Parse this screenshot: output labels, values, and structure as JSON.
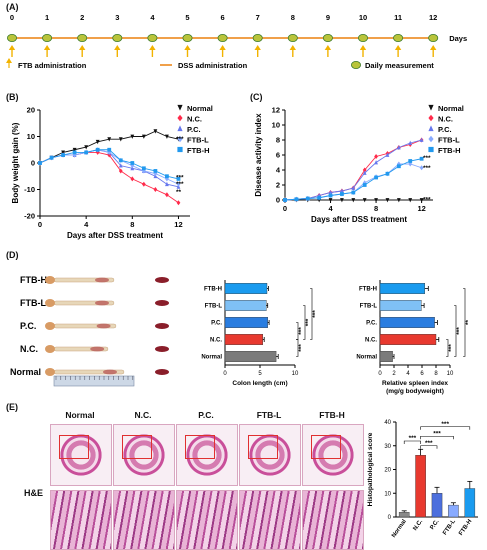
{
  "panels": {
    "A": "(A)",
    "B": "(B)",
    "C": "(C)",
    "D": "(D)",
    "E": "(E)"
  },
  "timeline": {
    "days": [
      "0",
      "1",
      "2",
      "3",
      "4",
      "5",
      "6",
      "7",
      "8",
      "9",
      "10",
      "11",
      "12"
    ],
    "days_label": "Days",
    "ftb_label": "FTB administration",
    "dss_label": "DSS administration",
    "measure_label": "Daily measurement",
    "colors": {
      "line": "#f0a04a",
      "dot": "#b9c43a",
      "dot_edge": "#3c7a2c",
      "arrow": "#f2b300"
    }
  },
  "groups": [
    {
      "name": "Normal",
      "color": "#111111",
      "marker": "triangle-down"
    },
    {
      "name": "N.C.",
      "color": "#ff2a4a",
      "marker": "diamond"
    },
    {
      "name": "P.C.",
      "color": "#6677ee",
      "marker": "triangle-up"
    },
    {
      "name": "FTB-L",
      "color": "#88aaff",
      "marker": "diamond"
    },
    {
      "name": "FTB-H",
      "color": "#2299ee",
      "marker": "square"
    }
  ],
  "chart_data": [
    {
      "id": "B",
      "type": "line",
      "xlabel": "Days after DSS treatment",
      "ylabel": "Body weight gain (%)",
      "xticks": [
        "0",
        "4",
        "8",
        "12"
      ],
      "yticks": [
        "-20",
        "-10",
        "0",
        "10",
        "20"
      ],
      "xlim": [
        0,
        13
      ],
      "ylim": [
        -20,
        20
      ],
      "x": [
        0,
        1,
        2,
        3,
        4,
        5,
        6,
        7,
        8,
        9,
        10,
        11,
        12
      ],
      "series": [
        {
          "name": "Normal",
          "values": [
            0,
            2,
            4,
            5,
            6,
            8,
            9,
            9,
            10,
            10,
            12,
            10,
            9
          ]
        },
        {
          "name": "N.C.",
          "values": [
            0,
            2,
            3,
            3,
            4,
            4,
            3,
            -3,
            -6,
            -8,
            -10,
            -12,
            -15
          ]
        },
        {
          "name": "P.C.",
          "values": [
            0,
            2,
            3,
            3,
            4,
            5,
            4,
            -1,
            -2,
            -3,
            -5,
            -8,
            -9
          ]
        },
        {
          "name": "FTB-L",
          "values": [
            0,
            2,
            3,
            3,
            4,
            5,
            4,
            1,
            -1,
            -3,
            -4,
            -6,
            -8
          ]
        },
        {
          "name": "FTB-H",
          "values": [
            0,
            2,
            3,
            4,
            4,
            5,
            5,
            1,
            0,
            -2,
            -3,
            -5,
            -6
          ]
        }
      ],
      "sig": [
        {
          "text": "***",
          "group": "Normal",
          "y": 9
        },
        {
          "text": "***",
          "group": "FTB-L",
          "y": -8
        },
        {
          "text": "**",
          "group": "FTB-H",
          "y": -11
        },
        {
          "text": "***",
          "group": "N.C.",
          "y": -5.5
        }
      ]
    },
    {
      "id": "C",
      "type": "line",
      "xlabel": "Days after DSS treatment",
      "ylabel": "Disease activity index",
      "xticks": [
        "0",
        "4",
        "8",
        "12"
      ],
      "yticks": [
        "0",
        "2",
        "4",
        "6",
        "8",
        "10",
        "12"
      ],
      "xlim": [
        0,
        13
      ],
      "ylim": [
        0,
        12
      ],
      "x": [
        0,
        1,
        2,
        3,
        4,
        5,
        6,
        7,
        8,
        9,
        10,
        11,
        12
      ],
      "series": [
        {
          "name": "Normal",
          "values": [
            0,
            0,
            0,
            0,
            0,
            0,
            0,
            0,
            0,
            0,
            0,
            0,
            0
          ]
        },
        {
          "name": "N.C.",
          "values": [
            0,
            0.1,
            0.2,
            0.6,
            1,
            1.2,
            1.6,
            4,
            5.8,
            6.2,
            7,
            7.4,
            8
          ]
        },
        {
          "name": "P.C.",
          "values": [
            0,
            0.1,
            0.2,
            0.6,
            1,
            1.2,
            1.6,
            3.6,
            5,
            6,
            7,
            7.6,
            8
          ]
        },
        {
          "name": "FTB-L",
          "values": [
            0,
            0.1,
            0.2,
            0.3,
            0.6,
            0.8,
            1,
            2.3,
            3.1,
            3.5,
            4.8,
            4.8,
            4.3
          ]
        },
        {
          "name": "FTB-H",
          "values": [
            0,
            0.1,
            0.2,
            0.3,
            0.6,
            0.8,
            1,
            2,
            3,
            3.5,
            4.5,
            5.2,
            5.5
          ]
        }
      ],
      "sig": [
        {
          "text": "***",
          "y": 5.6
        },
        {
          "text": "***",
          "y": 4.3
        },
        {
          "text": "***",
          "y": 0.1
        }
      ]
    },
    {
      "id": "D-colon",
      "type": "bar",
      "orientation": "horizontal",
      "categories": [
        "FTB-H",
        "FTB-L",
        "P.C.",
        "N.C.",
        "Normal"
      ],
      "values": [
        6.0,
        5.9,
        6.1,
        5.4,
        7.3
      ],
      "errors": [
        0.2,
        0.2,
        0.2,
        0.2,
        0.3
      ],
      "colors": [
        "#1a9bef",
        "#7fc0f5",
        "#2a7de0",
        "#e8392f",
        "#7b7b7b"
      ],
      "xlabel": "Colon length (cm)",
      "xticks": [
        "0",
        "5",
        "10"
      ],
      "xlim": [
        0,
        10
      ],
      "sig": [
        "***",
        "***",
        "***",
        "***"
      ]
    },
    {
      "id": "D-spleen",
      "type": "bar",
      "orientation": "horizontal",
      "categories": [
        "FTB-H",
        "FTB-L",
        "P.C.",
        "N.C.",
        "Normal"
      ],
      "values": [
        6.4,
        5.9,
        7.8,
        8.0,
        1.8
      ],
      "errors": [
        0.5,
        0.4,
        0.4,
        0.4,
        0.2
      ],
      "colors": [
        "#1a9bef",
        "#7fc0f5",
        "#2a7de0",
        "#e8392f",
        "#7b7b7b"
      ],
      "xlabel": "Relative spleen index",
      "xlabel2": "(mg/g bodyweight)",
      "xticks": [
        "0",
        "2",
        "4",
        "6",
        "8",
        "10"
      ],
      "xlim": [
        0,
        10
      ],
      "sig": [
        "**",
        "***",
        "***"
      ]
    },
    {
      "id": "E-score",
      "type": "bar",
      "categories": [
        "Normal",
        "N.C.",
        "P.C.",
        "FTB-L",
        "FTB-H"
      ],
      "values": [
        2,
        26,
        10,
        5,
        12
      ],
      "errors": [
        0.6,
        2.5,
        2.5,
        1,
        3
      ],
      "colors": [
        "#8a8a8a",
        "#e8392f",
        "#4c6fdd",
        "#88aaff",
        "#1a9bef"
      ],
      "ylabel": "Histopathological score",
      "yticks": [
        "0",
        "10",
        "20",
        "30",
        "40"
      ],
      "ylim": [
        0,
        40
      ],
      "sig": [
        "***",
        "***",
        "***",
        "***"
      ]
    }
  ],
  "photo_labels": [
    "FTB-H",
    "FTB-L",
    "P.C.",
    "N.C.",
    "Normal"
  ],
  "he": {
    "columns": [
      "Normal",
      "N.C.",
      "P.C.",
      "FTB-L",
      "FTB-H"
    ],
    "row_label": "H&E"
  }
}
